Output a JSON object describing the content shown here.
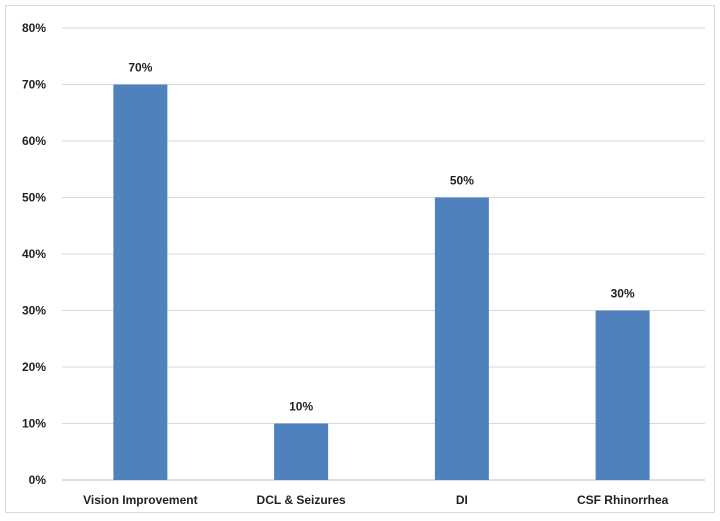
{
  "chart_data": {
    "type": "bar",
    "categories": [
      "Vision Improvement",
      "DCL & Seizures",
      "DI",
      "CSF Rhinorrhea"
    ],
    "values": [
      70,
      10,
      50,
      30
    ],
    "data_labels": [
      "70%",
      "10%",
      "50%",
      "30%"
    ],
    "title": "",
    "xlabel": "",
    "ylabel": "",
    "ylim": [
      0,
      80
    ],
    "yticks": [
      0,
      10,
      20,
      30,
      40,
      50,
      60,
      70,
      80
    ],
    "ytick_labels": [
      "0%",
      "10%",
      "20%",
      "30%",
      "40%",
      "50%",
      "60%",
      "70%",
      "80%"
    ],
    "grid": true,
    "legend": "none",
    "colors": {
      "bar": "#4f81bd",
      "grid": "#d9d9d9",
      "axis": "#bfbfbf",
      "text": "#222222"
    }
  }
}
